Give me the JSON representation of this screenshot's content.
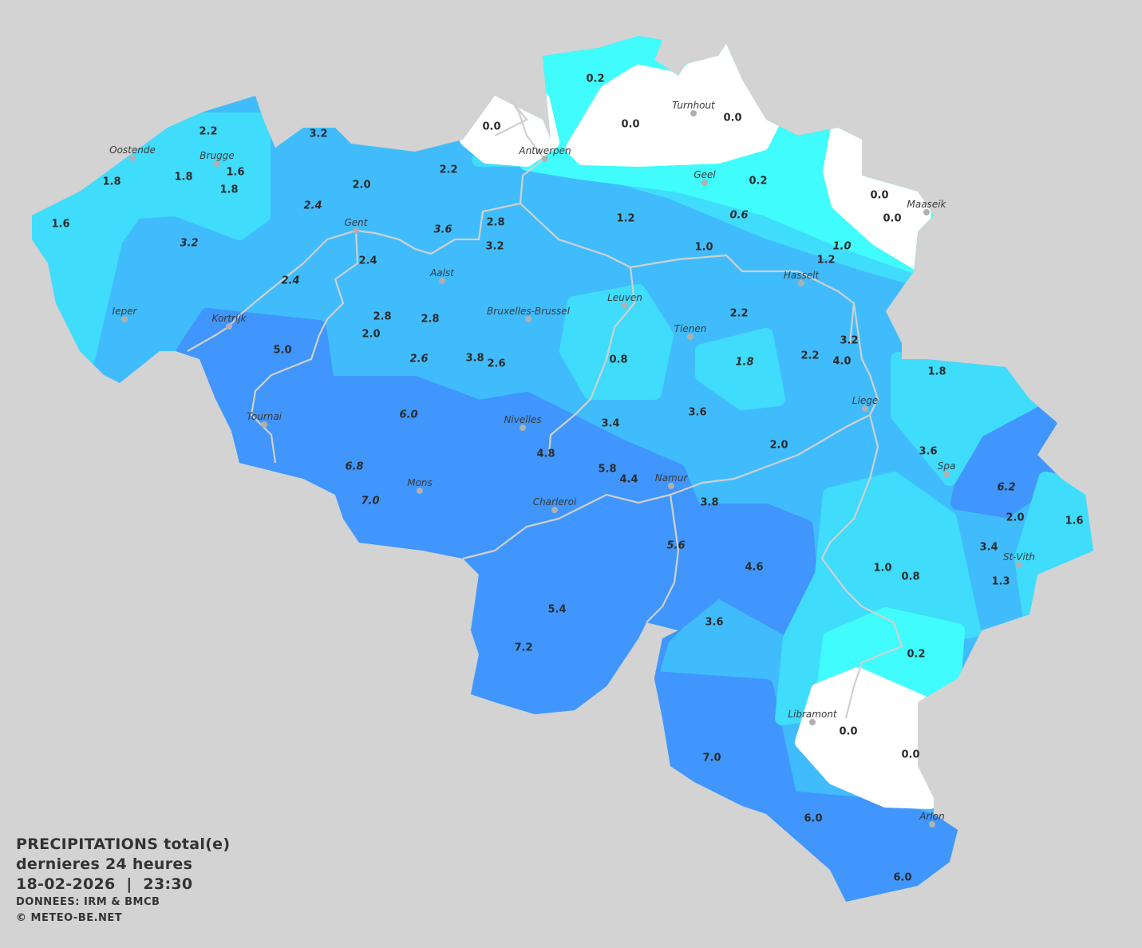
{
  "colors": {
    "background": "#d3d3d3",
    "band_0": "#ffffff",
    "band_0_5": "#40fcfc",
    "band_1_5": "#40dcfc",
    "band_2_4": "#40bcfc",
    "band_4_8": "#4096fc",
    "text": "#333333"
  },
  "legend": {
    "title": "PRECIPITATIONS total(e)",
    "period": "dernieres 24 heures",
    "datetime": "18-02-2026  |  23:30",
    "source": "DONNEES: IRM & BMCB",
    "copyright": "© METEO-BE.NET"
  },
  "cities": [
    "Oostende",
    "Brugge",
    "Antwerpen",
    "Turnhout",
    "Geel",
    "Maaseik",
    "Gent",
    "Aalst",
    "Hasselt",
    "Leuven",
    "Ieper",
    "Bruxelles-Brussel",
    "Kortrijk",
    "Tienen",
    "Liege",
    "Tournai",
    "Nivelles",
    "Spa",
    "Namur",
    "Mons",
    "Charleroi",
    "St-Vith",
    "Libramont",
    "Arlon"
  ],
  "station_values": [
    {
      "v": "0.2",
      "italic": false
    },
    {
      "v": "0.0",
      "italic": false
    },
    {
      "v": "0.0",
      "italic": false
    },
    {
      "v": "0.0",
      "italic": false
    },
    {
      "v": "2.2",
      "italic": false
    },
    {
      "v": "3.2",
      "italic": false
    },
    {
      "v": "1.6",
      "italic": false
    },
    {
      "v": "1.8",
      "italic": false
    },
    {
      "v": "1.8",
      "italic": false
    },
    {
      "v": "1.8",
      "italic": false
    },
    {
      "v": "2.0",
      "italic": false
    },
    {
      "v": "2.2",
      "italic": false
    },
    {
      "v": "0.2",
      "italic": false
    },
    {
      "v": "0.0",
      "italic": false
    },
    {
      "v": "0.0",
      "italic": false
    },
    {
      "v": "1.6",
      "italic": false
    },
    {
      "v": "2.4",
      "italic": true
    },
    {
      "v": "3.2",
      "italic": true
    },
    {
      "v": "3.6",
      "italic": true
    },
    {
      "v": "2.8",
      "italic": false
    },
    {
      "v": "3.2",
      "italic": false
    },
    {
      "v": "1.2",
      "italic": false
    },
    {
      "v": "0.6",
      "italic": true
    },
    {
      "v": "1.0",
      "italic": false
    },
    {
      "v": "1.0",
      "italic": true
    },
    {
      "v": "1.2",
      "italic": false
    },
    {
      "v": "2.4",
      "italic": false
    },
    {
      "v": "2.4",
      "italic": true
    },
    {
      "v": "2.8",
      "italic": false
    },
    {
      "v": "2.8",
      "italic": false
    },
    {
      "v": "2.0",
      "italic": false
    },
    {
      "v": "2.2",
      "italic": false
    },
    {
      "v": "5.0",
      "italic": false
    },
    {
      "v": "2.6",
      "italic": true
    },
    {
      "v": "3.8",
      "italic": false
    },
    {
      "v": "2.6",
      "italic": false
    },
    {
      "v": "0.8",
      "italic": false
    },
    {
      "v": "1.8",
      "italic": true
    },
    {
      "v": "2.2",
      "italic": false
    },
    {
      "v": "3.2",
      "italic": false
    },
    {
      "v": "4.0",
      "italic": false
    },
    {
      "v": "1.8",
      "italic": false
    },
    {
      "v": "6.0",
      "italic": true
    },
    {
      "v": "3.4",
      "italic": false
    },
    {
      "v": "3.6",
      "italic": false
    },
    {
      "v": "4.8",
      "italic": false
    },
    {
      "v": "2.0",
      "italic": false
    },
    {
      "v": "3.6",
      "italic": false
    },
    {
      "v": "6.8",
      "italic": true
    },
    {
      "v": "5.8",
      "italic": false
    },
    {
      "v": "4.4",
      "italic": false
    },
    {
      "v": "6.2",
      "italic": true
    },
    {
      "v": "7.0",
      "italic": true
    },
    {
      "v": "3.8",
      "italic": false
    },
    {
      "v": "2.0",
      "italic": false
    },
    {
      "v": "1.6",
      "italic": false
    },
    {
      "v": "5.6",
      "italic": true
    },
    {
      "v": "3.4",
      "italic": false
    },
    {
      "v": "4.6",
      "italic": false
    },
    {
      "v": "1.0",
      "italic": false
    },
    {
      "v": "0.8",
      "italic": false
    },
    {
      "v": "1.3",
      "italic": false
    },
    {
      "v": "5.4",
      "italic": false
    },
    {
      "v": "3.6",
      "italic": false
    },
    {
      "v": "7.2",
      "italic": false
    },
    {
      "v": "0.2",
      "italic": false
    },
    {
      "v": "0.0",
      "italic": false
    },
    {
      "v": "0.0",
      "italic": false
    },
    {
      "v": "7.0",
      "italic": false
    },
    {
      "v": "6.0",
      "italic": false
    },
    {
      "v": "6.0",
      "italic": false
    }
  ]
}
